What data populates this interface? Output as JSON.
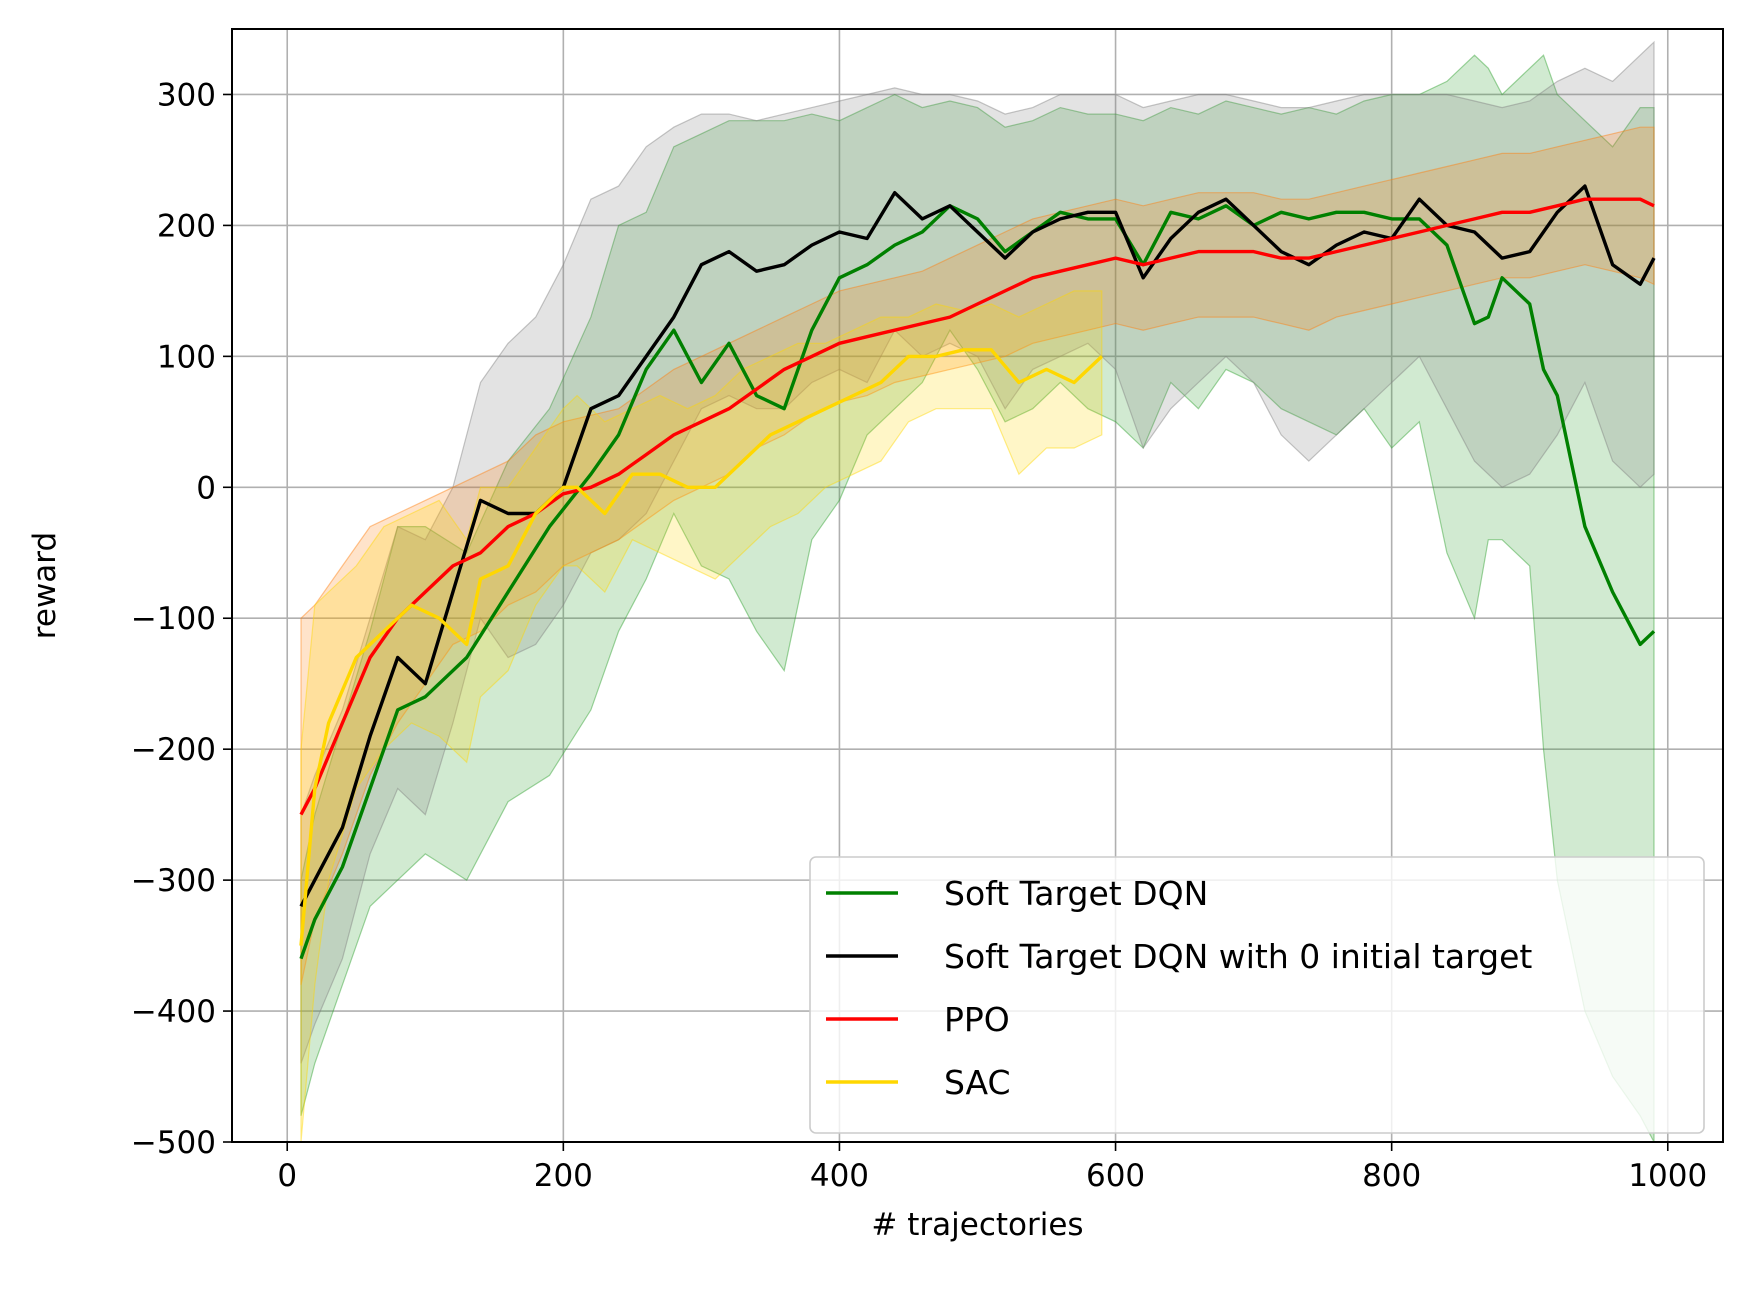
{
  "chart_data": {
    "type": "line",
    "title": "",
    "xlabel": "# trajectories",
    "ylabel": "reward",
    "xlim": [
      -40,
      1040
    ],
    "ylim": [
      -500,
      350
    ],
    "xticks": [
      0,
      200,
      400,
      600,
      800,
      1000
    ],
    "yticks": [
      -500,
      -400,
      -300,
      -200,
      -100,
      0,
      100,
      200,
      300
    ],
    "xtick_labels": [
      "0",
      "200",
      "400",
      "600",
      "800",
      "1000"
    ],
    "ytick_labels": [
      "−500",
      "−400",
      "−300",
      "−200",
      "−100",
      "0",
      "100",
      "200",
      "300"
    ],
    "grid": true,
    "legend_position": "bottom-right",
    "series": [
      {
        "name": "Soft Target DQN",
        "color": "#008000",
        "band_color": "#2ca02c",
        "x": [
          10,
          20,
          40,
          60,
          80,
          100,
          130,
          160,
          190,
          220,
          240,
          260,
          280,
          300,
          320,
          340,
          360,
          380,
          400,
          420,
          440,
          460,
          480,
          500,
          520,
          540,
          560,
          580,
          600,
          620,
          640,
          660,
          680,
          700,
          720,
          740,
          760,
          780,
          800,
          820,
          840,
          860,
          870,
          880,
          900,
          910,
          920,
          940,
          960,
          980,
          990
        ],
        "y": [
          -360,
          -330,
          -290,
          -230,
          -170,
          -160,
          -130,
          -80,
          -30,
          10,
          40,
          90,
          120,
          80,
          110,
          70,
          60,
          120,
          160,
          170,
          185,
          195,
          215,
          205,
          180,
          195,
          210,
          205,
          205,
          170,
          210,
          205,
          215,
          200,
          210,
          205,
          210,
          210,
          205,
          205,
          185,
          125,
          130,
          160,
          140,
          90,
          70,
          -30,
          -80,
          -120,
          -110
        ],
        "upper": [
          -300,
          -250,
          -180,
          -110,
          -30,
          -30,
          -50,
          20,
          60,
          130,
          200,
          210,
          260,
          270,
          280,
          280,
          280,
          285,
          280,
          290,
          300,
          290,
          295,
          290,
          275,
          280,
          290,
          285,
          285,
          280,
          290,
          285,
          295,
          290,
          285,
          290,
          285,
          295,
          300,
          300,
          310,
          330,
          320,
          300,
          320,
          330,
          300,
          280,
          260,
          290,
          290
        ],
        "lower": [
          -480,
          -440,
          -380,
          -320,
          -300,
          -280,
          -300,
          -240,
          -220,
          -170,
          -110,
          -70,
          -20,
          -60,
          -70,
          -110,
          -140,
          -40,
          -10,
          40,
          60,
          80,
          120,
          90,
          50,
          60,
          80,
          60,
          50,
          30,
          80,
          60,
          90,
          80,
          60,
          50,
          40,
          60,
          30,
          50,
          -50,
          -100,
          -40,
          -40,
          -60,
          -200,
          -300,
          -400,
          -450,
          -480,
          -500
        ]
      },
      {
        "name": "Soft Target DQN with 0 initial target",
        "color": "#000000",
        "band_color": "#808080",
        "x": [
          10,
          20,
          40,
          60,
          80,
          100,
          120,
          140,
          160,
          180,
          200,
          220,
          240,
          260,
          280,
          300,
          320,
          340,
          360,
          380,
          400,
          420,
          440,
          460,
          480,
          500,
          520,
          540,
          560,
          580,
          600,
          620,
          640,
          660,
          680,
          700,
          720,
          740,
          760,
          780,
          800,
          820,
          840,
          860,
          880,
          900,
          920,
          940,
          960,
          980,
          990
        ],
        "y": [
          -320,
          -300,
          -260,
          -190,
          -130,
          -150,
          -80,
          -10,
          -20,
          -20,
          0,
          60,
          70,
          100,
          130,
          170,
          180,
          165,
          170,
          185,
          195,
          190,
          225,
          205,
          215,
          195,
          175,
          195,
          205,
          210,
          210,
          160,
          190,
          210,
          220,
          200,
          180,
          170,
          185,
          195,
          190,
          220,
          200,
          195,
          175,
          180,
          210,
          230,
          170,
          155,
          175
        ],
        "upper": [
          -250,
          -220,
          -170,
          -100,
          -30,
          -40,
          0,
          80,
          110,
          130,
          170,
          220,
          230,
          260,
          275,
          285,
          285,
          280,
          285,
          290,
          295,
          300,
          305,
          300,
          300,
          295,
          285,
          290,
          300,
          300,
          300,
          290,
          295,
          300,
          300,
          295,
          290,
          290,
          295,
          300,
          300,
          300,
          300,
          295,
          290,
          295,
          310,
          320,
          310,
          330,
          340
        ],
        "lower": [
          -440,
          -410,
          -360,
          -280,
          -230,
          -250,
          -180,
          -100,
          -130,
          -120,
          -90,
          -50,
          -40,
          -20,
          20,
          60,
          70,
          60,
          60,
          80,
          90,
          80,
          120,
          100,
          110,
          100,
          60,
          90,
          100,
          110,
          90,
          30,
          60,
          80,
          100,
          80,
          40,
          20,
          40,
          60,
          80,
          100,
          60,
          20,
          0,
          10,
          40,
          80,
          20,
          0,
          10
        ]
      },
      {
        "name": "PPO",
        "color": "#ff0000",
        "band_color": "#ff7f0e",
        "x": [
          10,
          20,
          40,
          60,
          80,
          100,
          120,
          140,
          160,
          180,
          200,
          220,
          240,
          260,
          280,
          300,
          320,
          340,
          360,
          380,
          400,
          420,
          440,
          460,
          480,
          500,
          520,
          540,
          560,
          580,
          600,
          620,
          640,
          660,
          680,
          700,
          720,
          740,
          760,
          780,
          800,
          820,
          840,
          860,
          880,
          900,
          920,
          940,
          960,
          980,
          990
        ],
        "y": [
          -250,
          -230,
          -180,
          -130,
          -100,
          -80,
          -60,
          -50,
          -30,
          -20,
          -5,
          0,
          10,
          25,
          40,
          50,
          60,
          75,
          90,
          100,
          110,
          115,
          120,
          125,
          130,
          140,
          150,
          160,
          165,
          170,
          175,
          170,
          175,
          180,
          180,
          180,
          175,
          175,
          180,
          185,
          190,
          195,
          200,
          205,
          210,
          210,
          215,
          220,
          220,
          220,
          215
        ],
        "upper": [
          -100,
          -90,
          -60,
          -30,
          -20,
          -10,
          0,
          10,
          20,
          40,
          50,
          55,
          60,
          75,
          90,
          100,
          110,
          120,
          130,
          140,
          150,
          155,
          160,
          165,
          175,
          185,
          195,
          205,
          210,
          215,
          220,
          215,
          220,
          225,
          225,
          225,
          220,
          220,
          225,
          230,
          235,
          240,
          245,
          250,
          255,
          255,
          260,
          265,
          270,
          275,
          275
        ],
        "lower": [
          -380,
          -330,
          -280,
          -220,
          -180,
          -150,
          -120,
          -110,
          -90,
          -80,
          -60,
          -50,
          -40,
          -25,
          -10,
          0,
          10,
          30,
          40,
          55,
          65,
          70,
          80,
          85,
          90,
          95,
          100,
          110,
          115,
          120,
          125,
          120,
          125,
          130,
          130,
          130,
          125,
          120,
          130,
          135,
          140,
          145,
          150,
          155,
          160,
          160,
          165,
          170,
          165,
          160,
          155
        ]
      },
      {
        "name": "SAC",
        "color": "#ffd700",
        "band_color": "#ffd700",
        "x": [
          10,
          20,
          30,
          50,
          70,
          90,
          110,
          130,
          140,
          160,
          180,
          200,
          210,
          230,
          250,
          270,
          290,
          310,
          330,
          350,
          370,
          390,
          410,
          430,
          450,
          470,
          490,
          510,
          530,
          550,
          570,
          590
        ],
        "y": [
          -350,
          -230,
          -180,
          -130,
          -110,
          -90,
          -100,
          -120,
          -70,
          -60,
          -20,
          0,
          0,
          -20,
          10,
          10,
          0,
          0,
          20,
          40,
          50,
          60,
          70,
          80,
          100,
          100,
          105,
          105,
          80,
          90,
          80,
          100
        ],
        "upper": [
          -200,
          -90,
          -80,
          -60,
          -30,
          -20,
          -10,
          -40,
          0,
          0,
          30,
          60,
          70,
          50,
          60,
          70,
          60,
          70,
          90,
          100,
          110,
          110,
          120,
          130,
          130,
          140,
          135,
          140,
          130,
          140,
          150,
          150
        ],
        "lower": [
          -500,
          -380,
          -300,
          -230,
          -200,
          -180,
          -190,
          -210,
          -160,
          -140,
          -90,
          -60,
          -60,
          -80,
          -40,
          -50,
          -60,
          -70,
          -50,
          -30,
          -20,
          0,
          10,
          20,
          50,
          60,
          60,
          60,
          10,
          30,
          30,
          40
        ]
      }
    ]
  }
}
